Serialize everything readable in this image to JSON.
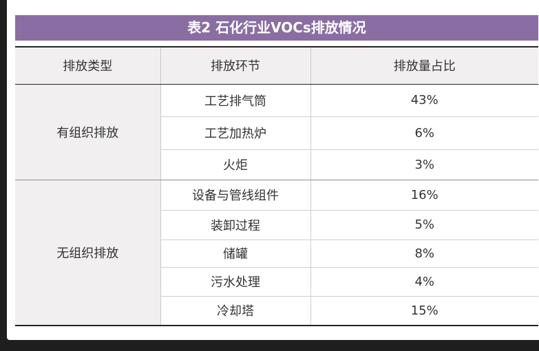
{
  "title": "表2 石化行业VOCs排放情况",
  "headers": [
    "排放类型",
    "排放环节",
    "排放量占比"
  ],
  "groups": [
    {
      "category": "有组织排放",
      "rows": [
        {
          "stage": "工艺排气筒",
          "share": "43%"
        },
        {
          "stage": "工艺加热炉",
          "share": "6%"
        },
        {
          "stage": "火炬",
          "share": "3%"
        }
      ]
    },
    {
      "category": "无组织排放",
      "rows": [
        {
          "stage": "设备与管线组件",
          "share": "16%"
        },
        {
          "stage": "装卸过程",
          "share": "5%"
        },
        {
          "stage": "储罐",
          "share": "8%"
        },
        {
          "stage": "污水处理",
          "share": "4%"
        },
        {
          "stage": "冷却塔",
          "share": "15%"
        }
      ]
    }
  ]
}
